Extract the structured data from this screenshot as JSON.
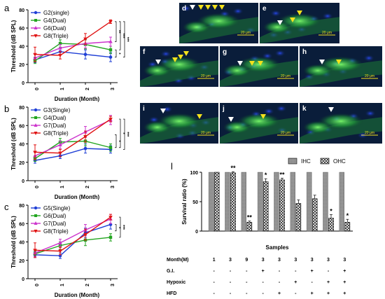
{
  "panels": {
    "a": "a",
    "b": "b",
    "c": "c",
    "d": "d",
    "e": "e",
    "f": "f",
    "g": "g",
    "h": "h",
    "i": "i",
    "j": "j",
    "k": "k",
    "l": "l"
  },
  "scale_bar_label": "20 μm",
  "colors": {
    "G2": "#1f3fd6",
    "G3": "#1f3fd6",
    "G5": "#1f3fd6",
    "G4": "#22a51f",
    "G6": "#22a51f",
    "G6dual": "#cc33cc",
    "G7": "#cc33cc",
    "G8": "#e01414",
    "micro_bg": "#0a1d3a",
    "micro_green": "#3ad24a",
    "arrow_white": "#ffffff",
    "arrow_yellow": "#f5e21c"
  },
  "chart_data": [
    {
      "type": "line",
      "panel": "a",
      "xlabel": "Duration (Month)",
      "ylabel": "Threshold (dB SPL)",
      "x": [
        0,
        1,
        2,
        3
      ],
      "ylim": [
        0,
        80
      ],
      "yticks": [
        0,
        20,
        40,
        60,
        80
      ],
      "series": [
        {
          "name": "G2(single)",
          "color": "#1f3fd6",
          "marker": "circle",
          "values": [
            25,
            34,
            31,
            28
          ],
          "err": [
            3,
            3,
            5,
            5
          ]
        },
        {
          "name": "G4(Dual)",
          "color": "#22a51f",
          "marker": "square",
          "values": [
            24,
            43,
            42,
            36
          ],
          "err": [
            3,
            4,
            5,
            4
          ]
        },
        {
          "name": "G6(Dual)",
          "color": "#cc33cc",
          "marker": "triangle",
          "values": [
            27,
            38,
            43,
            45
          ],
          "err": [
            4,
            4,
            5,
            5
          ]
        },
        {
          "name": "G8(Triple)",
          "color": "#e01414",
          "marker": "triangle-down",
          "values": [
            31,
            30,
            48,
            67
          ],
          "err": [
            8,
            4,
            6,
            2
          ]
        }
      ],
      "annotations": [
        "**",
        "*",
        "***",
        "***"
      ]
    },
    {
      "type": "line",
      "panel": "b",
      "xlabel": "Duration (Month)",
      "ylabel": "Threshold (dB SPL)",
      "x": [
        0,
        1,
        2,
        3
      ],
      "ylim": [
        0,
        80
      ],
      "yticks": [
        0,
        20,
        40,
        60,
        80
      ],
      "series": [
        {
          "name": "G3(Single)",
          "color": "#1f3fd6",
          "marker": "circle",
          "values": [
            22,
            27,
            35,
            34
          ],
          "err": [
            3,
            3,
            5,
            4
          ]
        },
        {
          "name": "G4(Dual)",
          "color": "#22a51f",
          "marker": "square",
          "values": [
            24,
            42,
            43,
            36
          ],
          "err": [
            3,
            4,
            5,
            4
          ]
        },
        {
          "name": "G7(Dual)",
          "color": "#cc33cc",
          "marker": "triangle",
          "values": [
            27,
            39,
            53,
            66
          ],
          "err": [
            4,
            4,
            6,
            5
          ]
        },
        {
          "name": "G8(Triple)",
          "color": "#e01414",
          "marker": "triangle-down",
          "values": [
            31,
            30,
            48,
            67
          ],
          "err": [
            8,
            4,
            6,
            3
          ]
        }
      ],
      "annotations": [
        "*",
        "*",
        "***"
      ]
    },
    {
      "type": "line",
      "panel": "c",
      "xlabel": "Duration (Month)",
      "ylabel": "Threshold (dB SPL)",
      "x": [
        0,
        1,
        2,
        3
      ],
      "ylim": [
        0,
        80
      ],
      "yticks": [
        0,
        20,
        40,
        60,
        80
      ],
      "series": [
        {
          "name": "G5(Single)",
          "color": "#1f3fd6",
          "marker": "circle",
          "values": [
            26,
            25,
            50,
            59
          ],
          "err": [
            3,
            3,
            5,
            5
          ]
        },
        {
          "name": "G6(Dual)",
          "color": "#22a51f",
          "marker": "square",
          "values": [
            27,
            36,
            42,
            45
          ],
          "err": [
            3,
            4,
            6,
            4
          ]
        },
        {
          "name": "G7(Dual)",
          "color": "#cc33cc",
          "marker": "triangle",
          "values": [
            28,
            39,
            53,
            65
          ],
          "err": [
            4,
            4,
            6,
            5
          ]
        },
        {
          "name": "G8(Triple)",
          "color": "#e01414",
          "marker": "triangle-down",
          "values": [
            31,
            30,
            48,
            67
          ],
          "err": [
            8,
            4,
            6,
            3
          ]
        }
      ],
      "annotations": [
        "*",
        "***"
      ]
    },
    {
      "type": "bar",
      "panel": "l",
      "xlabel": "Samples",
      "ylabel": "Survival ratio (%)",
      "ylim": [
        0,
        100
      ],
      "yticks": [
        0,
        50,
        100
      ],
      "legend": [
        "IHC",
        "OHC"
      ],
      "groups": [
        {
          "ihc": 100,
          "ohc": 100,
          "ohc_err": 0,
          "sig": ""
        },
        {
          "ihc": 100,
          "ohc": 99,
          "ohc_err": 2,
          "sig": "**"
        },
        {
          "ihc": 100,
          "ohc": 15,
          "ohc_err": 2,
          "sig": "**"
        },
        {
          "ihc": 100,
          "ohc": 84,
          "ohc_err": 5,
          "sig": "*"
        },
        {
          "ihc": 100,
          "ohc": 87,
          "ohc_err": 3,
          "sig": "**"
        },
        {
          "ihc": 100,
          "ohc": 47,
          "ohc_err": 6,
          "sig": ""
        },
        {
          "ihc": 100,
          "ohc": 55,
          "ohc_err": 6,
          "sig": ""
        },
        {
          "ihc": 100,
          "ohc": 22,
          "ohc_err": 6,
          "sig": "*"
        },
        {
          "ihc": 100,
          "ohc": 15,
          "ohc_err": 5,
          "sig": "*"
        }
      ],
      "table": {
        "rows": [
          {
            "label": "Month(M)",
            "cells": [
              "1",
              "3",
              "9",
              "3",
              "3",
              "3",
              "3",
              "3",
              "3"
            ]
          },
          {
            "label": "G.I.",
            "cells": [
              "-",
              "-",
              "-",
              "+",
              "-",
              "-",
              "+",
              "-",
              "+"
            ]
          },
          {
            "label": "Hypoxic",
            "cells": [
              "-",
              "-",
              "-",
              "-",
              "-",
              "+",
              "-",
              "+",
              "+"
            ]
          },
          {
            "label": "HFD",
            "cells": [
              "-",
              "-",
              "-",
              "-",
              "+",
              "-",
              "+",
              "+",
              "+"
            ]
          }
        ]
      }
    }
  ]
}
